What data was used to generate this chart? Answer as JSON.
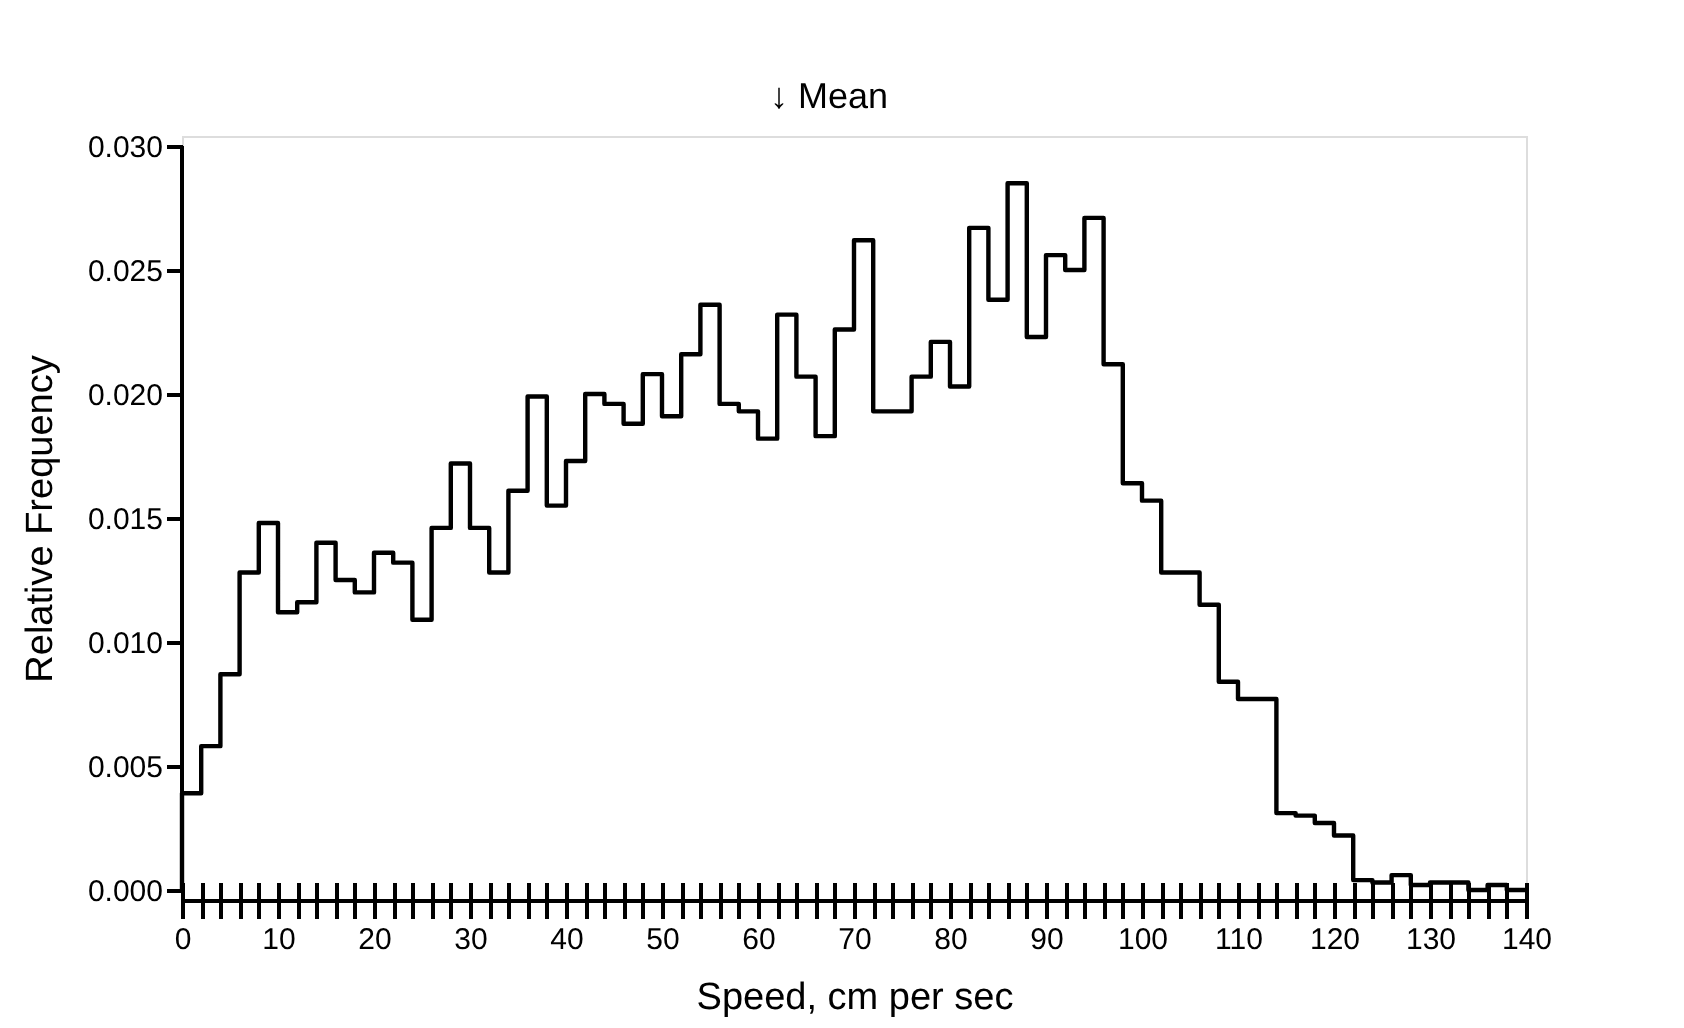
{
  "chart_data": {
    "type": "histogram",
    "xlabel": "Speed, cm per sec",
    "ylabel": "Relative Frequency",
    "bins": [
      0,
      2,
      4,
      6,
      8,
      10,
      12,
      14,
      16,
      18,
      20,
      22,
      24,
      26,
      28,
      30,
      32,
      34,
      36,
      38,
      40,
      42,
      44,
      46,
      48,
      50,
      52,
      54,
      56,
      58,
      60,
      62,
      64,
      66,
      68,
      70,
      72,
      74,
      76,
      78,
      80,
      82,
      84,
      86,
      88,
      90,
      92,
      94,
      96,
      98,
      100,
      102,
      104,
      106,
      108,
      110,
      112,
      114,
      116,
      118,
      120,
      122,
      124,
      126,
      128,
      130,
      132,
      134,
      136,
      138,
      140
    ],
    "values": [
      0.0039,
      0.0058,
      0.0087,
      0.0128,
      0.0148,
      0.0112,
      0.0116,
      0.014,
      0.0125,
      0.012,
      0.0136,
      0.0132,
      0.0109,
      0.0146,
      0.0172,
      0.0146,
      0.0128,
      0.0161,
      0.0199,
      0.0155,
      0.0173,
      0.02,
      0.0196,
      0.0188,
      0.0208,
      0.0191,
      0.0216,
      0.0236,
      0.0196,
      0.0193,
      0.0182,
      0.0232,
      0.0207,
      0.0183,
      0.0226,
      0.0262,
      0.0193,
      0.0193,
      0.0207,
      0.0221,
      0.0203,
      0.0267,
      0.0238,
      0.0285,
      0.0223,
      0.0256,
      0.025,
      0.0271,
      0.0212,
      0.0164,
      0.0157,
      0.0128,
      0.0128,
      0.0115,
      0.0084,
      0.0077,
      0.0077,
      0.0031,
      0.003,
      0.0027,
      0.0022,
      0.0004,
      0.0003,
      0.0006,
      0.0002,
      0.0003,
      0.0003,
      0.0,
      0.0002,
      0.0
    ],
    "color": "#000000",
    "xlim": [
      0,
      140
    ],
    "xticks": [
      0,
      {
        "value": 2,
        "label": null
      },
      {
        "value": 4,
        "label": null
      },
      {
        "value": 6,
        "label": null
      },
      {
        "value": 8,
        "label": null
      },
      10,
      {
        "value": 12,
        "label": null
      },
      {
        "value": 14,
        "label": null
      },
      {
        "value": 16,
        "label": null
      },
      {
        "value": 18,
        "label": null
      },
      20,
      {
        "value": 22,
        "label": null
      },
      {
        "value": 24,
        "label": null
      },
      {
        "value": 26,
        "label": null
      },
      {
        "value": 28,
        "label": null
      },
      30,
      {
        "value": 32,
        "label": null
      },
      {
        "value": 34,
        "label": null
      },
      {
        "value": 36,
        "label": null
      },
      {
        "value": 38,
        "label": null
      },
      40,
      {
        "value": 42,
        "label": null
      },
      {
        "value": 44,
        "label": null
      },
      {
        "value": 46,
        "label": null
      },
      {
        "value": 48,
        "label": null
      },
      50,
      {
        "value": 52,
        "label": null
      },
      {
        "value": 54,
        "label": null
      },
      {
        "value": 56,
        "label": null
      },
      {
        "value": 58,
        "label": null
      },
      60,
      {
        "value": 62,
        "label": null
      },
      {
        "value": 64,
        "label": null
      },
      {
        "value": 66,
        "label": null
      },
      {
        "value": 68,
        "label": null
      },
      70,
      {
        "value": 72,
        "label": null
      },
      {
        "value": 74,
        "label": null
      },
      {
        "value": 76,
        "label": null
      },
      {
        "value": 78,
        "label": null
      },
      80,
      {
        "value": 82,
        "label": null
      },
      {
        "value": 84,
        "label": null
      },
      {
        "value": 86,
        "label": null
      },
      {
        "value": 88,
        "label": null
      },
      90,
      {
        "value": 92,
        "label": null
      },
      {
        "value": 94,
        "label": null
      },
      {
        "value": 96,
        "label": null
      },
      {
        "value": 98,
        "label": null
      },
      100,
      {
        "value": 102,
        "label": null
      },
      {
        "value": 104,
        "label": null
      },
      {
        "value": 106,
        "label": null
      },
      {
        "value": 108,
        "label": null
      },
      110,
      {
        "value": 112,
        "label": null
      },
      {
        "value": 114,
        "label": null
      },
      {
        "value": 116,
        "label": null
      },
      {
        "value": 118,
        "label": null
      },
      120,
      {
        "value": 122,
        "label": null
      },
      {
        "value": 124,
        "label": null
      },
      {
        "value": 126,
        "label": null
      },
      {
        "value": 128,
        "label": null
      },
      130,
      {
        "value": 132,
        "label": null
      },
      {
        "value": 134,
        "label": null
      },
      {
        "value": 136,
        "label": null
      },
      {
        "value": 138,
        "label": null
      },
      140
    ],
    "ylim": [
      0,
      0.03
    ],
    "yticks": [
      {
        "value": 0,
        "label": "0.000"
      },
      {
        "value": 0.005,
        "label": "0.005"
      },
      {
        "value": 0.01,
        "label": "0.010"
      },
      {
        "value": 0.015,
        "label": "0.015"
      },
      {
        "value": 0.02,
        "label": "0.020"
      },
      {
        "value": 0.025,
        "label": "0.025"
      },
      {
        "value": 0.03,
        "label": "0.030"
      }
    ],
    "annotations": [
      "↓ Mean"
    ],
    "grid": false,
    "legend": false
  }
}
